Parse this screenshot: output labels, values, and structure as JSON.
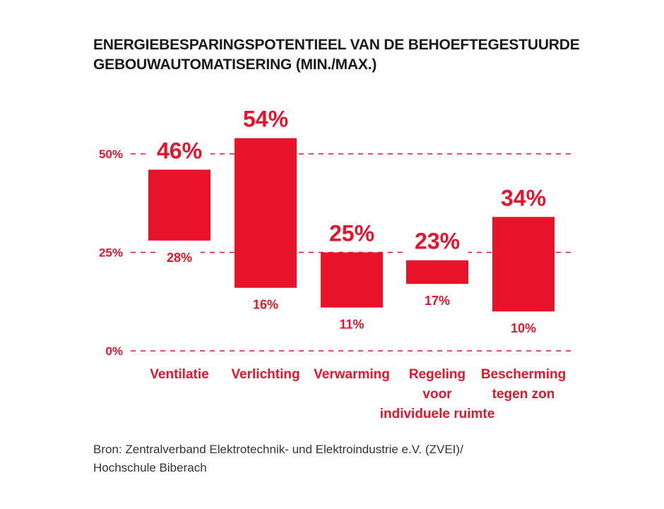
{
  "title_lines": [
    "ENERGIEBESPARINGSPOTENTIEEL VAN DE BEHOEFTEGESTUURDE",
    "GEBOUWAUTOMATISERING (MIN./MAX.)"
  ],
  "source_lines": [
    "Bron: Zentralverband Elektrotechnik- und Elektroindustrie e.V. (ZVEI)/",
    "Hochschule Biberach"
  ],
  "colors": {
    "accent": "#e8132b",
    "text": "#1a1a1a"
  },
  "chart_data": {
    "type": "bar",
    "subtype": "floating-range",
    "title": "ENERGIEBESPARINGSPOTENTIEEL VAN DE BEHOEFTEGESTUURDE GEBOUWAUTOMATISERING (MIN./MAX.)",
    "ylim": [
      0,
      50
    ],
    "yticks": [
      0,
      25,
      50
    ],
    "ytick_labels": [
      "0%",
      "25%",
      "50%"
    ],
    "grid": "dashed horizontal at ticks",
    "categories": [
      [
        "Ventilatie"
      ],
      [
        "Verlichting"
      ],
      [
        "Verwarming"
      ],
      [
        "Regeling",
        "voor",
        "individuele ruimte"
      ],
      [
        "Bescherming",
        "tegen zon"
      ]
    ],
    "min_values": [
      28,
      16,
      11,
      17,
      10
    ],
    "max_values": [
      46,
      54,
      25,
      23,
      34
    ],
    "min_labels": [
      "28%",
      "16%",
      "11%",
      "17%",
      "10%"
    ],
    "max_labels": [
      "46%",
      "54%",
      "25%",
      "23%",
      "34%"
    ]
  }
}
